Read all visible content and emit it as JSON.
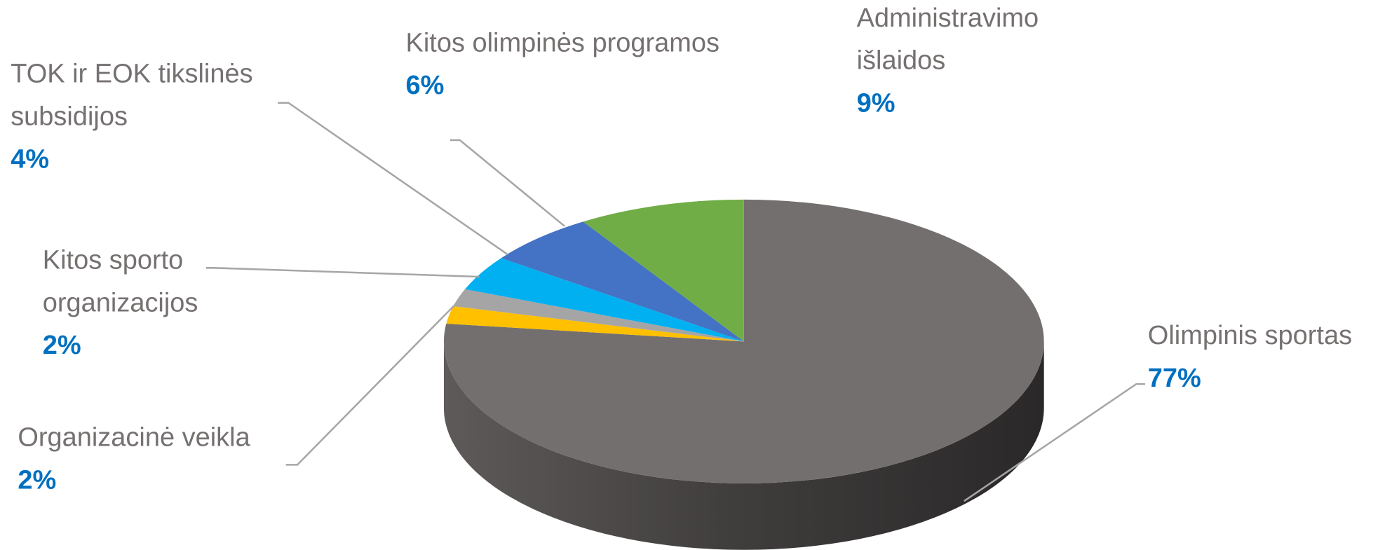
{
  "chart_data": {
    "type": "pie",
    "categories": [
      "Olimpinis sportas",
      "Organizacinė veikla",
      "Kitos sporto organizacijos",
      "TOK ir EOK tikslinės subsidijos",
      "Kitos olimpinės programos",
      "Administravimo išlaidos"
    ],
    "values": [
      77,
      2,
      2,
      4,
      6,
      9
    ],
    "value_labels": [
      "77%",
      "2%",
      "2%",
      "4%",
      "6%",
      "9%"
    ],
    "colors": [
      "#736f6e",
      "#ffc000",
      "#a5a5a5",
      "#00b0f0",
      "#4472c4",
      "#70ad47"
    ]
  }
}
